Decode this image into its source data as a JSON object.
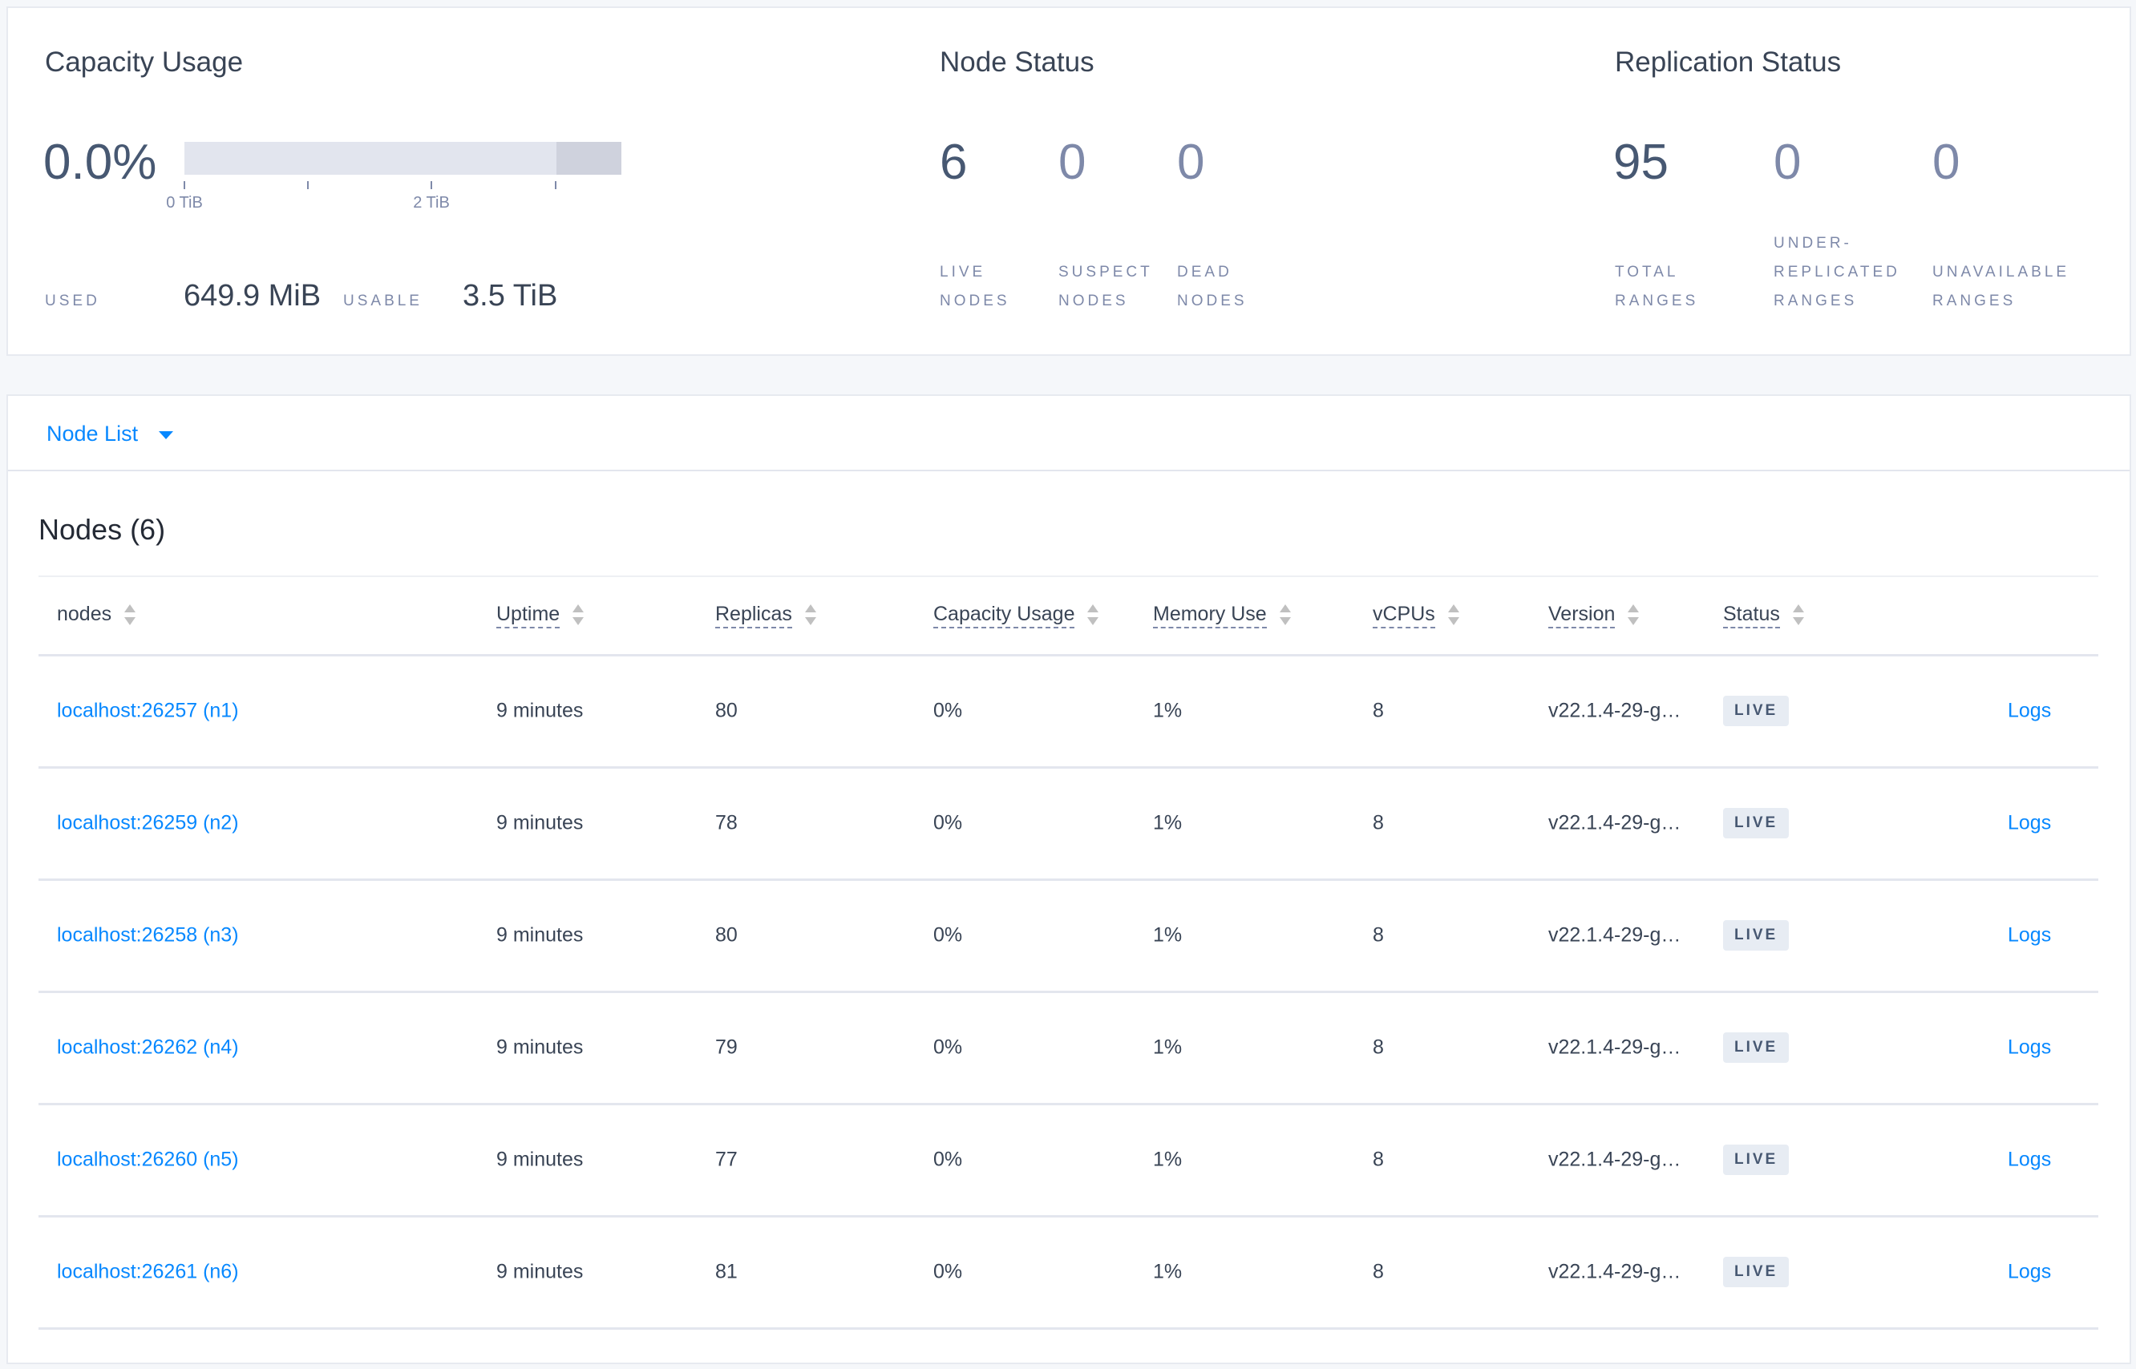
{
  "capacity": {
    "title": "Capacity Usage",
    "percent": "0.0%",
    "usage_fraction": 0.0,
    "axis_ticks": [
      "0 TiB",
      "2 TiB"
    ],
    "used_label": "USED",
    "used_value": "649.9 MiB",
    "usable_label": "USABLE",
    "usable_value": "3.5 TiB"
  },
  "node_status": {
    "title": "Node Status",
    "stats": [
      {
        "value": "6",
        "label1": "LIVE",
        "label2": "NODES"
      },
      {
        "value": "0",
        "label1": "SUSPECT",
        "label2": "NODES"
      },
      {
        "value": "0",
        "label1": "DEAD",
        "label2": "NODES"
      }
    ]
  },
  "replication_status": {
    "title": "Replication Status",
    "stats": [
      {
        "value": "95",
        "label0": "",
        "label1": "TOTAL",
        "label2": "RANGES"
      },
      {
        "value": "0",
        "label0": "UNDER-",
        "label1": "REPLICATED",
        "label2": "RANGES"
      },
      {
        "value": "0",
        "label0": "",
        "label1": "UNAVAILABLE",
        "label2": "RANGES"
      }
    ]
  },
  "view_selector": {
    "label": "Node List",
    "icon": "caret-down-icon"
  },
  "nodes_table": {
    "title": "Nodes (6)",
    "columns": [
      "nodes",
      "Uptime",
      "Replicas",
      "Capacity Usage",
      "Memory Use",
      "vCPUs",
      "Version",
      "Status"
    ],
    "rows": [
      {
        "node": "localhost:26257 (n1)",
        "uptime": "9 minutes",
        "replicas": "80",
        "capacity": "0%",
        "memory": "1%",
        "vcpus": "8",
        "version": "v22.1.4-29-g…",
        "status": "LIVE",
        "logs": "Logs"
      },
      {
        "node": "localhost:26259 (n2)",
        "uptime": "9 minutes",
        "replicas": "78",
        "capacity": "0%",
        "memory": "1%",
        "vcpus": "8",
        "version": "v22.1.4-29-g…",
        "status": "LIVE",
        "logs": "Logs"
      },
      {
        "node": "localhost:26258 (n3)",
        "uptime": "9 minutes",
        "replicas": "80",
        "capacity": "0%",
        "memory": "1%",
        "vcpus": "8",
        "version": "v22.1.4-29-g…",
        "status": "LIVE",
        "logs": "Logs"
      },
      {
        "node": "localhost:26262 (n4)",
        "uptime": "9 minutes",
        "replicas": "79",
        "capacity": "0%",
        "memory": "1%",
        "vcpus": "8",
        "version": "v22.1.4-29-g…",
        "status": "LIVE",
        "logs": "Logs"
      },
      {
        "node": "localhost:26260 (n5)",
        "uptime": "9 minutes",
        "replicas": "77",
        "capacity": "0%",
        "memory": "1%",
        "vcpus": "8",
        "version": "v22.1.4-29-g…",
        "status": "LIVE",
        "logs": "Logs"
      },
      {
        "node": "localhost:26261 (n6)",
        "uptime": "9 minutes",
        "replicas": "81",
        "capacity": "0%",
        "memory": "1%",
        "vcpus": "8",
        "version": "v22.1.4-29-g…",
        "status": "LIVE",
        "logs": "Logs"
      }
    ]
  },
  "colors": {
    "link": "#0788ff",
    "text": "#394455",
    "muted": "#7e89a9",
    "badge_bg": "#e7ecf3",
    "page_bg": "#f5f7fa"
  }
}
